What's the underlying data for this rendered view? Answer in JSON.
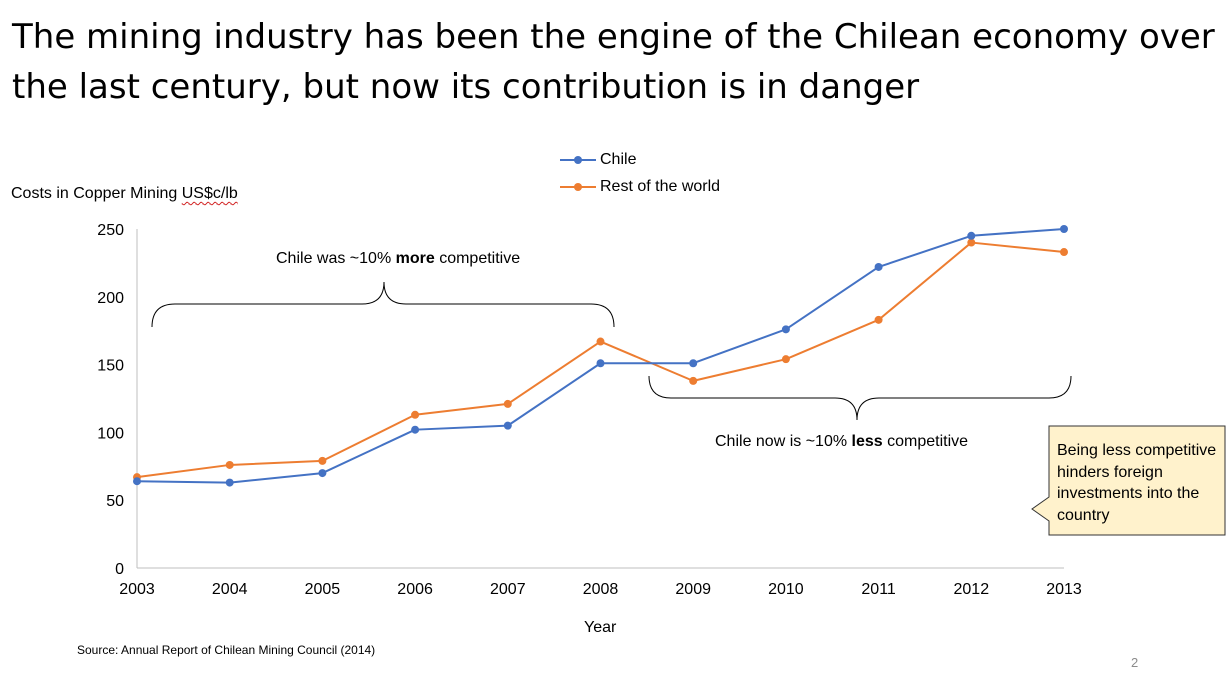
{
  "slide": {
    "title": "The mining industry has been the engine of the Chilean economy over the last century, but now its contribution is in danger",
    "source": "Source: Annual Report of Chilean Mining Council (2014)",
    "page_number": "2",
    "callout": "Being less competitive hinders foreign investments into the country"
  },
  "annotations": {
    "more": {
      "prefix": "Chile was ~10% ",
      "bold": "more",
      "suffix": " competitive"
    },
    "less": {
      "prefix": "Chile now is ~10% ",
      "bold": "less",
      "suffix": " competitive"
    }
  },
  "chart_data": {
    "type": "line",
    "x": [
      "2003",
      "2004",
      "2005",
      "2006",
      "2007",
      "2008",
      "2009",
      "2010",
      "2011",
      "2012",
      "2013"
    ],
    "series": [
      {
        "name": "Chile",
        "color": "#4472c4",
        "values": [
          64,
          63,
          70,
          102,
          105,
          151,
          151,
          176,
          222,
          245,
          250
        ]
      },
      {
        "name": "Rest of the world",
        "color": "#ed7d31",
        "values": [
          67,
          76,
          79,
          113,
          121,
          167,
          138,
          154,
          183,
          240,
          233
        ]
      }
    ],
    "ylabel": "Costs in Copper Mining",
    "ylabel_unit": "US$c/lb",
    "xlabel": "Year",
    "ylim": [
      0,
      250
    ],
    "yticks": [
      "0",
      "50",
      "100",
      "150",
      "200",
      "250"
    ],
    "grid": false,
    "legend": "top-center"
  }
}
